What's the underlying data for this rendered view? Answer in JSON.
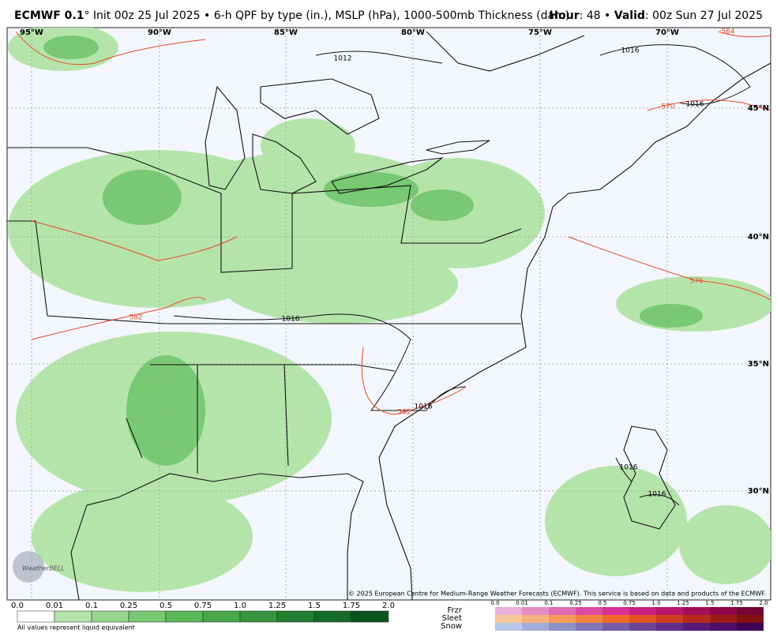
{
  "header": {
    "model": "ECMWF 0.1",
    "description": "° Init 00z 25 Jul 2025 • 6-h QPF by type (in.), MSLP (hPa), 1000-500mb Thickness (dam)",
    "hour_label": "Hour",
    "hour_text": ": 48 • ",
    "valid_label": "Valid",
    "valid_text": ": 00z Sun 27 Jul 2025"
  },
  "map": {
    "longitude_labels": [
      "95°W",
      "90°W",
      "85°W",
      "80°W",
      "75°W",
      "70°W"
    ],
    "latitude_labels": [
      "45°N",
      "40°N",
      "35°N",
      "30°N"
    ],
    "isobar_labels": [
      "1012",
      "1016",
      "1016",
      "1016",
      "1016",
      "1016",
      "1016"
    ],
    "thickness_labels": [
      "564",
      "570",
      "576",
      "582",
      "582"
    ],
    "credit": "© 2025 European Centre for Medium-Range Weather Forecasts (ECMWF). This service is based on data and products of the ECMWF.",
    "logo": "WeatherBELL"
  },
  "legend": {
    "rain_ticks": [
      "0.0",
      "0.01",
      "0.1",
      "0.25",
      "0.5",
      "0.75",
      "1.0",
      "1.25",
      "1.5",
      "1.75",
      "2.0"
    ],
    "note": "All values represent liquid equivalent",
    "ptype_labels": [
      "Frzr",
      "Sleet",
      "Snow"
    ],
    "ptype_ticks": [
      "0.0",
      "0.01",
      "0.1",
      "0.25",
      "0.5",
      "0.75",
      "1.0",
      "1.25",
      "1.5",
      "1.75",
      "2.0"
    ]
  }
}
